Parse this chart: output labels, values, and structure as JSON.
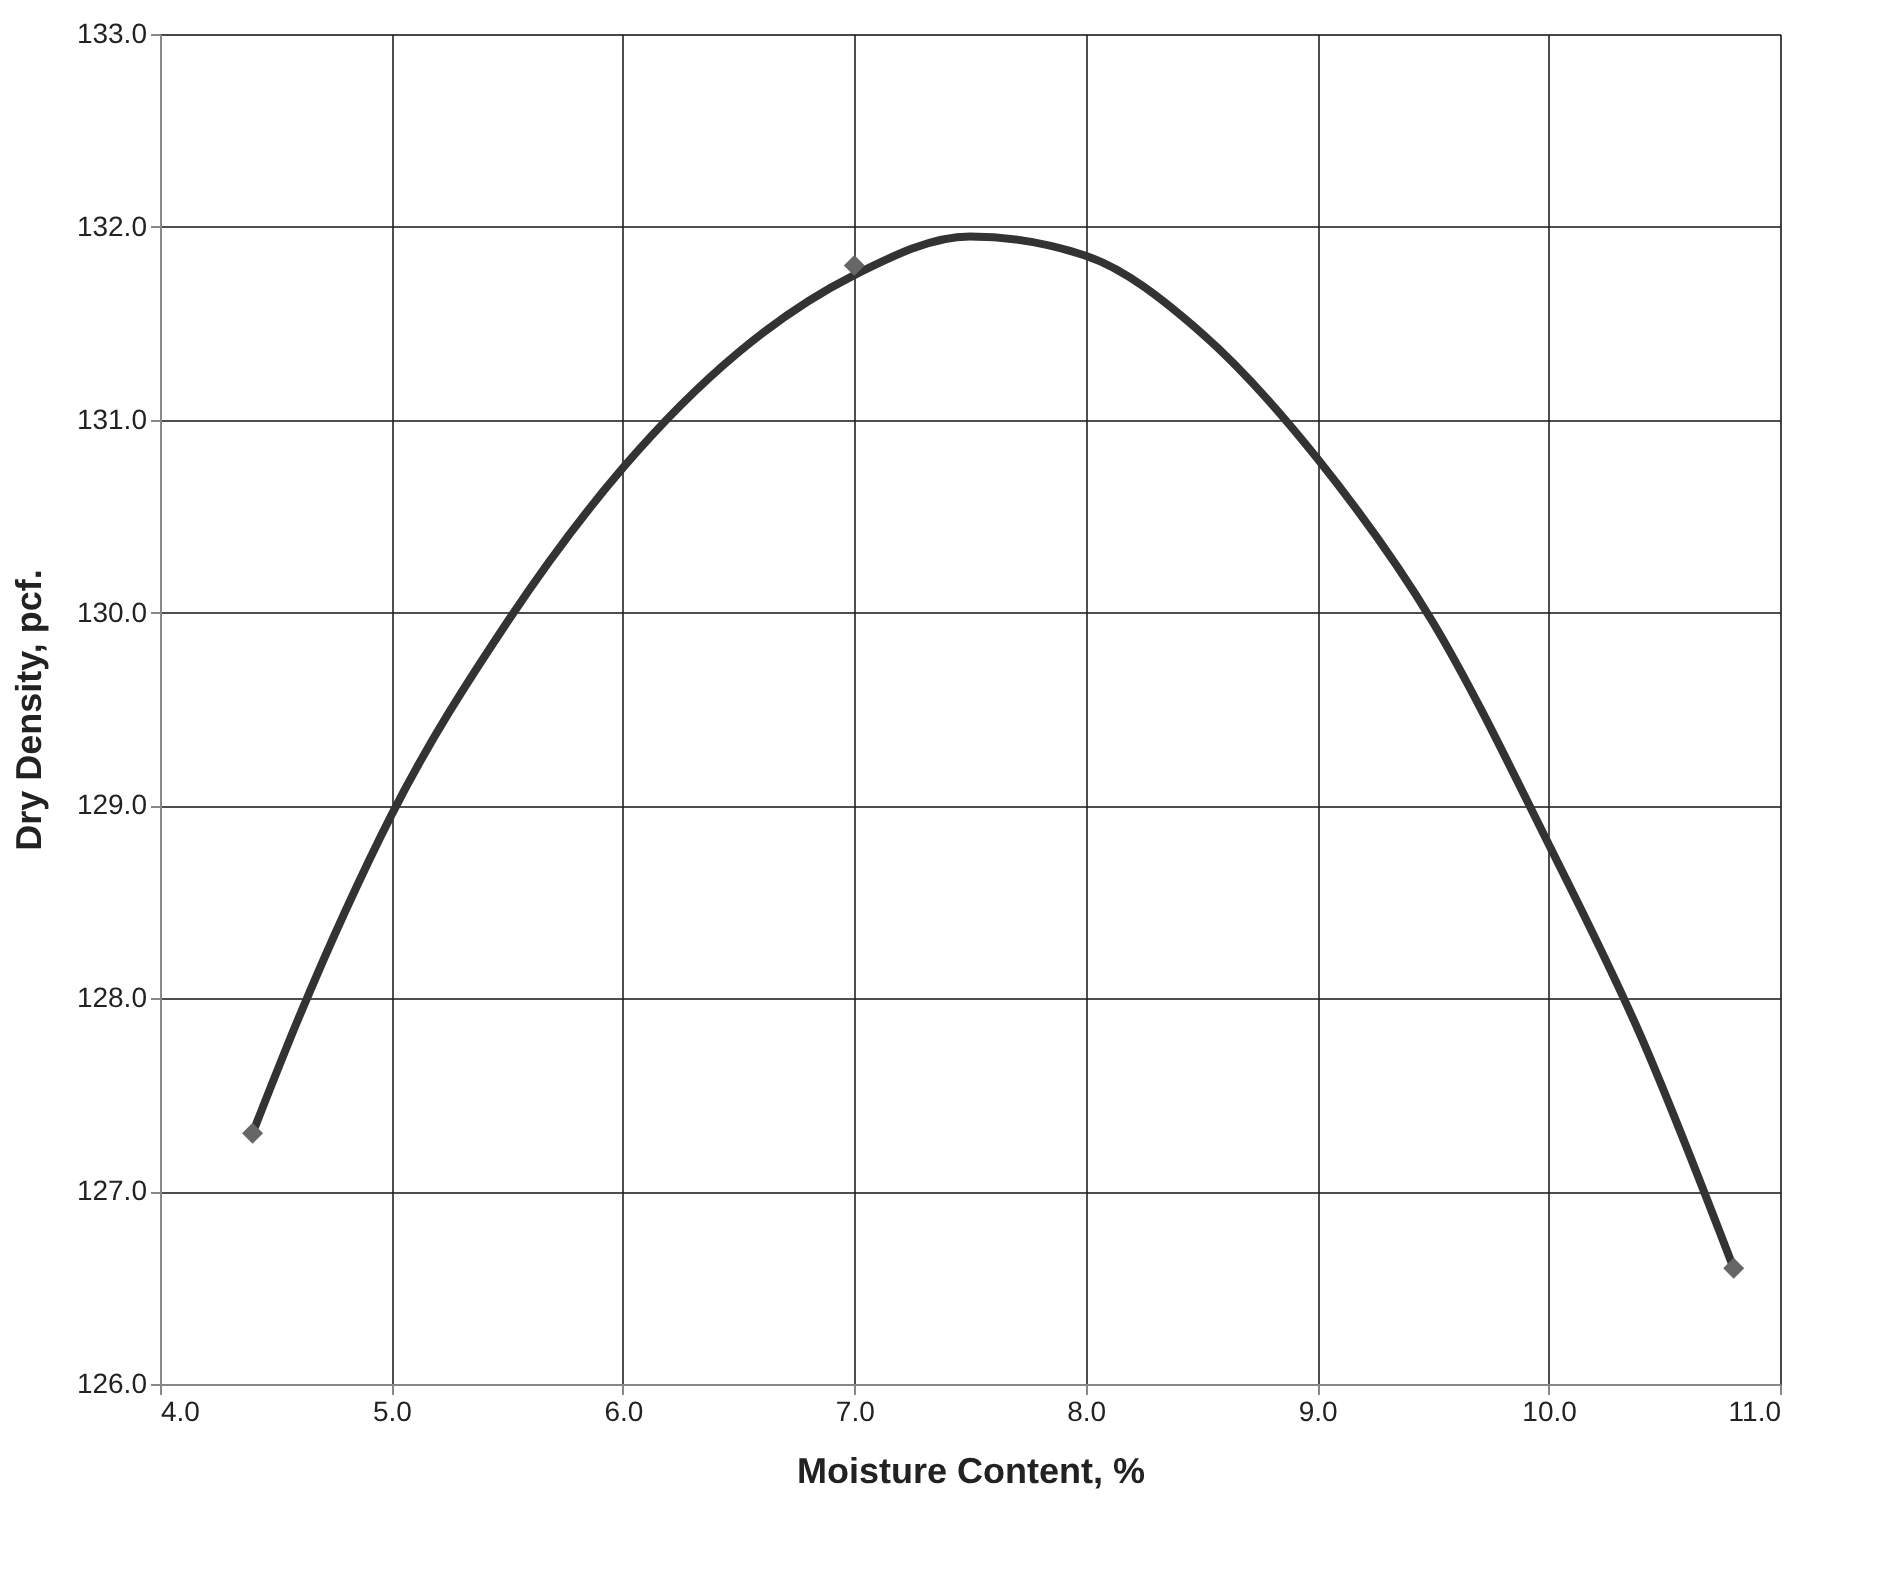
{
  "chart_data": {
    "type": "scatter",
    "xlabel": "Moisture Content, %",
    "ylabel": "Dry Density, pcf.",
    "xlim": [
      4.0,
      11.0
    ],
    "xticks": [
      {
        "value": 4,
        "label": "4.0"
      },
      {
        "value": 5,
        "label": "5.0"
      },
      {
        "value": 6,
        "label": "6.0"
      },
      {
        "value": 7,
        "label": "7.0"
      },
      {
        "value": 8,
        "label": "8.0"
      },
      {
        "value": 9,
        "label": "9.0"
      },
      {
        "value": 10,
        "label": "10.0"
      },
      {
        "value": 11,
        "label": "11.0"
      }
    ],
    "ylim": [
      126.0,
      133.0
    ],
    "yticks": [
      {
        "value": 126,
        "label": "126.0"
      },
      {
        "value": 127,
        "label": "127.0"
      },
      {
        "value": 128,
        "label": "128.0"
      },
      {
        "value": 129,
        "label": "129.0"
      },
      {
        "value": 130,
        "label": "130.0"
      },
      {
        "value": 131,
        "label": "131.0"
      },
      {
        "value": 132,
        "label": "132.0"
      },
      {
        "value": 133,
        "label": "133.0"
      }
    ],
    "grid": true,
    "series": [
      {
        "type": "line",
        "color": "#333333",
        "line_style": "solid",
        "x": [
          4.4,
          4.6,
          4.8,
          5.0,
          5.5,
          6.0,
          6.5,
          7.0,
          7.5,
          8.0,
          8.5,
          9.0,
          9.5,
          10.0,
          10.4,
          10.8
        ],
        "values": [
          127.3,
          127.9,
          128.45,
          128.95,
          129.95,
          130.75,
          131.35,
          131.75,
          131.95,
          131.85,
          131.45,
          130.8,
          129.95,
          128.8,
          127.8,
          126.6
        ]
      },
      {
        "color": "#666666",
        "marker": "diamond",
        "x": [
          4.4,
          7.0,
          10.8
        ],
        "values": [
          127.3,
          131.8,
          126.6
        ]
      }
    ]
  }
}
